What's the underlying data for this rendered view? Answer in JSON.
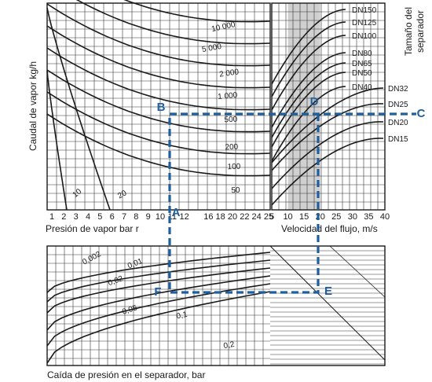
{
  "chart_data": {
    "type": "line",
    "title": "Separator sizing nomogram",
    "colors": {
      "ink": "#1a1a1a",
      "grid": "#333333",
      "shade": "#d0d0d0",
      "path": "#1f5f9e"
    },
    "ylabel": "Caudal de vapor kg/h",
    "ylabel_right": [
      "Tamaño del",
      "separador"
    ],
    "xlabel_pressure": "Presión de vapor bar r",
    "xlabel_velocity": "Velocidad del flujo, m/s",
    "xlabel_dp": "Caída de presión en el separador, bar",
    "pressure_ticks": [
      "1",
      "2",
      "3",
      "4",
      "5",
      "6",
      "7",
      "8",
      "9",
      "10",
      "11",
      "12",
      "A",
      "16",
      "18",
      "20",
      "22",
      "24",
      "25"
    ],
    "velocity_ticks": [
      "5",
      "10",
      "15",
      "20",
      "25",
      "30",
      "35",
      "40"
    ],
    "velocity_range": [
      5,
      40
    ],
    "shaded_velocity_band": [
      10,
      20
    ],
    "flow_curves": [
      {
        "label": "10 000",
        "value": 10000
      },
      {
        "label": "5 000",
        "value": 5000
      },
      {
        "label": "2 000",
        "value": 2000
      },
      {
        "label": "1 000",
        "value": 1000
      },
      {
        "label": "500",
        "value": 500
      },
      {
        "label": "200",
        "value": 200
      },
      {
        "label": "100",
        "value": 100
      },
      {
        "label": "50",
        "value": 50
      },
      {
        "label": "20",
        "value": 20
      },
      {
        "label": "10",
        "value": 10
      }
    ],
    "size_curves": [
      "DN150",
      "DN125",
      "DN100",
      "DN80",
      "DN65",
      "DN50",
      "DN40",
      "DN32",
      "DN25",
      "DN20",
      "DN15"
    ],
    "dp_curves": [
      "0,002",
      "0,01",
      "0,02",
      "0,05",
      "0,1",
      "0,2"
    ],
    "path_points": [
      {
        "label": "A",
        "pressure_bar": 13,
        "flow_kgh": 500
      },
      {
        "label": "B",
        "pressure_bar": 13,
        "flow_kgh": 500
      },
      {
        "label": "C",
        "size": "DN25"
      },
      {
        "label": "D",
        "velocity_ms": 18,
        "size": "DN25"
      },
      {
        "label": "E",
        "velocity_ms": 18
      },
      {
        "label": "F",
        "pressure_bar": 13
      }
    ],
    "example": {
      "pressure_bar": 13,
      "flow_kgh": 500,
      "separator_size": "DN25",
      "velocity_ms": 18
    }
  }
}
